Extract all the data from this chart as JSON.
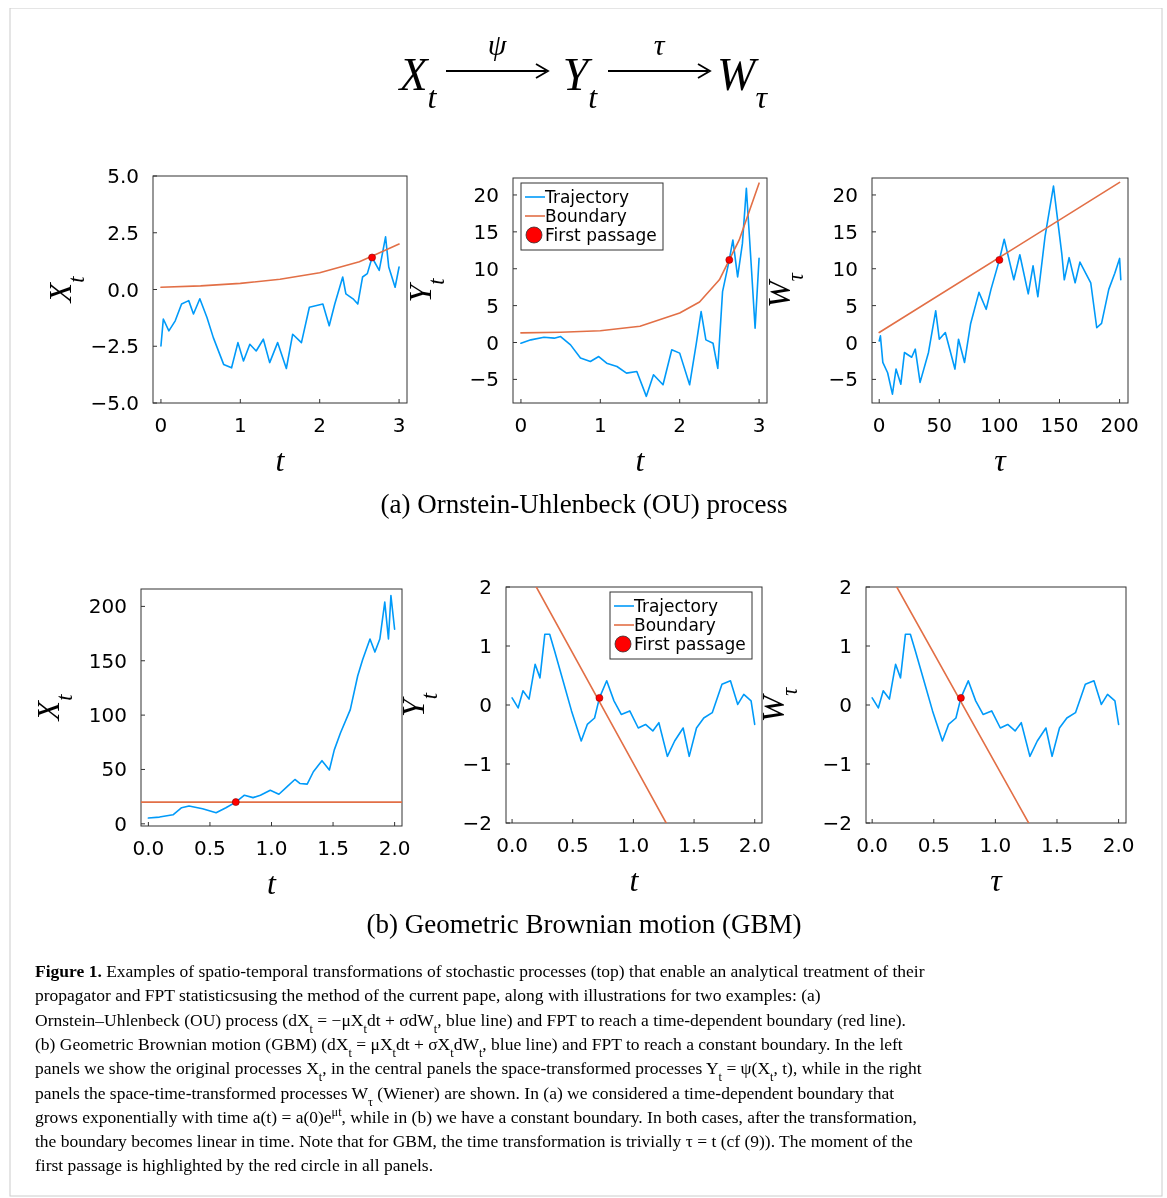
{
  "chart_data": [
    {
      "type": "other",
      "annotations": [
        "X$_{t}$",
        "ψ",
        "Y$_{t}$",
        "τ",
        "W$_{τ}$"
      ]
    },
    {
      "type": "line",
      "xlabel": "t",
      "ylabel": "X$_{t}$",
      "xlim": [
        -0.1,
        3.1
      ],
      "ylim": [
        -5,
        5
      ],
      "xticks": [
        0,
        1,
        2,
        3
      ],
      "yticks": [
        {
          "value": -5,
          "label": "−5.0"
        },
        {
          "value": -2.5,
          "label": "−2.5"
        },
        {
          "value": 0,
          "label": "0.0"
        },
        2.5,
        {
          "value": 5,
          "label": "5.0"
        }
      ],
      "series": [
        {
          "color": "#009af9",
          "x": [
            0,
            0.03,
            0.1,
            0.18,
            0.26,
            0.35,
            0.41,
            0.49,
            0.58,
            0.66,
            0.79,
            0.89,
            0.97,
            1.04,
            1.12,
            1.2,
            1.29,
            1.37,
            1.47,
            1.58,
            1.66,
            1.77,
            1.87,
            2.04,
            2.12,
            2.19,
            2.29,
            2.33,
            2.42,
            2.48,
            2.54,
            2.6,
            2.66,
            2.75,
            2.83,
            2.87,
            2.95,
            3.0
          ],
          "values": [
            -2.49,
            -1.3,
            -1.82,
            -1.38,
            -0.64,
            -0.49,
            -1.08,
            -0.41,
            -1.23,
            -2.12,
            -3.3,
            -3.45,
            -2.34,
            -3.15,
            -2.41,
            -2.71,
            -2.19,
            -3.22,
            -2.34,
            -3.48,
            -1.97,
            -2.34,
            -0.78,
            -0.64,
            -1.6,
            -0.64,
            0.55,
            -0.19,
            -0.41,
            -0.64,
            0.55,
            0.7,
            1.41,
            0.84,
            2.32,
            0.99,
            0.1,
            0.99
          ]
        },
        {
          "color": "#e26f46",
          "x": [
            0,
            0.5,
            1,
            1.5,
            2,
            2.5,
            3
          ],
          "values": [
            0.1,
            0.16,
            0.27,
            0.45,
            0.74,
            1.22,
            2.0
          ]
        },
        {
          "type": "scatter",
          "marker": "circle",
          "color": "#ff0000",
          "x": [
            2.66
          ],
          "values": [
            1.41
          ]
        }
      ]
    },
    {
      "type": "line",
      "xlabel": "t",
      "ylabel": "Y$_{t}$",
      "xlim": [
        -0.1,
        3.1
      ],
      "ylim": [
        -8.2,
        22.3
      ],
      "xticks": [
        0,
        1,
        2,
        3
      ],
      "yticks": [
        {
          "value": -5,
          "label": "−5"
        },
        0,
        5,
        10,
        15,
        20
      ],
      "legend": "top left",
      "annotations": [
        "(a) Ornstein-Uhlenbeck (OU) process"
      ],
      "series": [
        {
          "name": "Trajectory",
          "color": "#009af9",
          "x": [
            0,
            0.125,
            0.29,
            0.42,
            0.5,
            0.625,
            0.75,
            0.875,
            0.98,
            1.08,
            1.21,
            1.33,
            1.46,
            1.58,
            1.67,
            1.79,
            1.9,
            2.0,
            2.125,
            2.21,
            2.27,
            2.33,
            2.42,
            2.48,
            2.54,
            2.625,
            2.67,
            2.73,
            2.79,
            2.84,
            2.9,
            2.95,
            3.0
          ],
          "values": [
            -0.1,
            0.36,
            0.72,
            0.59,
            0.81,
            -0.32,
            -2.1,
            -2.57,
            -1.9,
            -2.8,
            -3.25,
            -4.15,
            -3.93,
            -7.3,
            -4.38,
            -5.73,
            -0.99,
            -1.44,
            -5.73,
            -0.1,
            4.2,
            0.36,
            -0.1,
            -3.5,
            6.9,
            11.2,
            13.9,
            8.9,
            13.4,
            20.9,
            10.7,
            1.94,
            11.4
          ]
        },
        {
          "name": "Boundary",
          "color": "#e26f46",
          "x": [
            0,
            0.5,
            1,
            1.5,
            2,
            2.25,
            2.5,
            2.625,
            2.75,
            3
          ],
          "values": [
            1.3,
            1.4,
            1.6,
            2.2,
            4.0,
            5.5,
            8.5,
            11.2,
            13.9,
            21.6
          ]
        },
        {
          "name": "First passage",
          "type": "scatter",
          "marker": "circle",
          "color": "#ff0000",
          "x": [
            2.625
          ],
          "values": [
            11.2
          ]
        }
      ]
    },
    {
      "type": "line",
      "xlabel": "τ",
      "ylabel": "W$_{τ}$",
      "xlim": [
        -6,
        207
      ],
      "ylim": [
        -8.2,
        22.3
      ],
      "xticks": [
        0,
        50,
        100,
        150,
        200
      ],
      "yticks": [
        {
          "value": -5,
          "label": "−5"
        },
        0,
        5,
        10,
        15,
        20
      ],
      "series": [
        {
          "color": "#009af9",
          "x": [
            0,
            1,
            3,
            7,
            11,
            14,
            18,
            21,
            27,
            30,
            34,
            41,
            47,
            50,
            55,
            63,
            66,
            71,
            76,
            83,
            89,
            93,
            100,
            104,
            112,
            117,
            124,
            128,
            132,
            138,
            145,
            152,
            154,
            158,
            163,
            167,
            176,
            181,
            185,
            191,
            196,
            200,
            201
          ],
          "values": [
            0.2,
            0.9,
            -2.7,
            -4.1,
            -7,
            -3.6,
            -5.65,
            -1.35,
            -2.0,
            -0.9,
            -5.4,
            -1.35,
            4.3,
            0.45,
            1.36,
            -3.6,
            0.45,
            -2.7,
            2.5,
            6.8,
            4.5,
            7.2,
            11.2,
            14,
            8.5,
            11.9,
            6.6,
            10.4,
            6.2,
            14.4,
            21.2,
            11.9,
            8.5,
            11.5,
            8.1,
            10.9,
            8.1,
            2,
            2.6,
            7.2,
            9.4,
            11.4,
            8.5
          ]
        },
        {
          "color": "#e26f46",
          "x": [
            0,
            200
          ],
          "values": [
            1.36,
            21.7
          ]
        },
        {
          "type": "scatter",
          "marker": "circle",
          "color": "#ff0000",
          "x": [
            100
          ],
          "values": [
            11.2
          ]
        }
      ]
    },
    {
      "type": "line",
      "xlabel": "t",
      "ylabel": "X$_{t}$",
      "xlim": [
        -0.06,
        2.06
      ],
      "ylim": [
        -2,
        216
      ],
      "xticks": [
        {
          "value": 0,
          "label": "0.0"
        },
        0.5,
        {
          "value": 1,
          "label": "1.0"
        },
        1.5,
        {
          "value": 2,
          "label": "2.0"
        }
      ],
      "yticks": [
        0,
        50,
        100,
        150,
        200
      ],
      "series": [
        {
          "color": "#009af9",
          "x": [
            0,
            0.09,
            0.2,
            0.27,
            0.33,
            0.44,
            0.55,
            0.63,
            0.71,
            0.78,
            0.85,
            0.91,
            0.99,
            1.06,
            1.125,
            1.19,
            1.23,
            1.29,
            1.34,
            1.41,
            1.47,
            1.51,
            1.56,
            1.64,
            1.7,
            1.74,
            1.8,
            1.84,
            1.88,
            1.92,
            1.95,
            1.97,
            2.0
          ],
          "values": [
            5.3,
            6.2,
            8.3,
            14.8,
            16.4,
            13.9,
            10.2,
            14.8,
            20,
            26.3,
            24.1,
            26.3,
            30.9,
            27.2,
            34,
            40.8,
            37.1,
            36.5,
            47.9,
            58.1,
            49.5,
            68,
            83.5,
            105,
            136,
            151,
            170,
            158,
            170,
            204,
            170,
            210,
            179
          ]
        },
        {
          "color": "#e26f46",
          "x": [
            -0.06,
            2.06
          ],
          "values": [
            20,
            20
          ]
        },
        {
          "type": "scatter",
          "marker": "circle",
          "color": "#ff0000",
          "x": [
            0.71
          ],
          "values": [
            20
          ]
        }
      ]
    },
    {
      "type": "line",
      "xlabel": "t",
      "ylabel": "Y$_{t}$",
      "xlim": [
        -0.05,
        2.06
      ],
      "ylim": [
        -2,
        2
      ],
      "xticks": [
        {
          "value": 0,
          "label": "0.0"
        },
        0.5,
        {
          "value": 1,
          "label": "1.0"
        },
        1.5,
        {
          "value": 2,
          "label": "2.0"
        }
      ],
      "yticks": [
        {
          "value": -2,
          "label": "−2"
        },
        {
          "value": -1,
          "label": "−1"
        },
        0,
        1,
        2
      ],
      "legend": "top right",
      "annotations": [
        "(b) Geometric Brownian motion (GBM)"
      ],
      "series": [
        {
          "name": "Trajectory",
          "color": "#009af9",
          "x": [
            0,
            0.05,
            0.09,
            0.14,
            0.19,
            0.23,
            0.27,
            0.31,
            0.35,
            0.42,
            0.49,
            0.57,
            0.62,
            0.68,
            0.72,
            0.78,
            0.84,
            0.9,
            0.97,
            1.04,
            1.1,
            1.16,
            1.21,
            1.28,
            1.34,
            1.41,
            1.46,
            1.52,
            1.58,
            1.65,
            1.73,
            1.8,
            1.86,
            1.91,
            1.97,
            2.0
          ],
          "values": [
            0.12,
            -0.05,
            0.24,
            0.1,
            0.69,
            0.46,
            1.2,
            1.2,
            0.92,
            0.41,
            -0.1,
            -0.61,
            -0.33,
            -0.22,
            0.12,
            0.41,
            0.07,
            -0.16,
            -0.1,
            -0.39,
            -0.33,
            -0.44,
            -0.3,
            -0.87,
            -0.61,
            -0.39,
            -0.87,
            -0.39,
            -0.22,
            -0.13,
            0.35,
            0.41,
            0.01,
            0.18,
            0.07,
            -0.33
          ]
        },
        {
          "name": "Boundary",
          "color": "#e26f46",
          "x": [
            0.2,
            1.27
          ],
          "values": [
            2,
            -2
          ]
        },
        {
          "name": "First passage",
          "type": "scatter",
          "marker": "circle",
          "color": "#ff0000",
          "x": [
            0.72
          ],
          "values": [
            0.12
          ]
        }
      ]
    },
    {
      "type": "line",
      "xlabel": "τ",
      "ylabel": "W$_{τ}$",
      "xlim": [
        -0.05,
        2.06
      ],
      "ylim": [
        -2,
        2
      ],
      "xticks": [
        {
          "value": 0,
          "label": "0.0"
        },
        0.5,
        {
          "value": 1,
          "label": "1.0"
        },
        1.5,
        {
          "value": 2,
          "label": "2.0"
        }
      ],
      "yticks": [
        {
          "value": -2,
          "label": "−2"
        },
        {
          "value": -1,
          "label": "−1"
        },
        0,
        1,
        2
      ],
      "series": [
        {
          "color": "#009af9",
          "x": [
            0,
            0.05,
            0.09,
            0.14,
            0.19,
            0.23,
            0.27,
            0.31,
            0.35,
            0.42,
            0.49,
            0.57,
            0.62,
            0.68,
            0.72,
            0.78,
            0.84,
            0.9,
            0.97,
            1.04,
            1.1,
            1.16,
            1.21,
            1.28,
            1.34,
            1.41,
            1.46,
            1.52,
            1.58,
            1.65,
            1.73,
            1.8,
            1.86,
            1.91,
            1.97,
            2.0
          ],
          "values": [
            0.12,
            -0.05,
            0.24,
            0.1,
            0.69,
            0.46,
            1.2,
            1.2,
            0.92,
            0.41,
            -0.1,
            -0.61,
            -0.33,
            -0.22,
            0.12,
            0.41,
            0.07,
            -0.16,
            -0.1,
            -0.39,
            -0.33,
            -0.44,
            -0.3,
            -0.87,
            -0.61,
            -0.39,
            -0.87,
            -0.39,
            -0.22,
            -0.13,
            0.35,
            0.41,
            0.01,
            0.18,
            0.07,
            -0.33
          ]
        },
        {
          "color": "#e26f46",
          "x": [
            0.2,
            1.27
          ],
          "values": [
            2,
            -2
          ]
        },
        {
          "type": "scatter",
          "marker": "circle",
          "color": "#ff0000",
          "x": [
            0.72
          ],
          "values": [
            0.12
          ]
        }
      ]
    },
    {
      "type": "other",
      "annotations": [
        "Figure 1. Examples of spatio-temporal transformations of stochastic processes (top) that enable an analytical treatment of their",
        "propagator and FPT statisticsusing the method of the current pape, along with illustrations for two examples: (a)",
        "Ornstein–Uhlenbeck (OU) process (dX$_{t}$ = −μX$_{t}$dt + σdW$_{t}$, blue line) and FPT to reach a time-dependent boundary (red line).",
        "(b) Geometric Brownian motion (GBM) (dX$_{t}$ = μX$_{t}$dt + σX$_{t}$dW$_{t}$, blue line) and FPT to reach a constant boundary. In the left",
        "panels we show the original processes X$_{t}$, in the central panels the space-transformed processes Y$_{t}$ = ψ(X$_{t}$, t), while in the right",
        "panels the space-time-transformed processes W$_{τ}$ (Wiener) are shown. In (a) we considered a time-dependent boundary that",
        "grows exponentially with time a(t) = a(0)e$^{μt}$, while in (b) we have a constant boundary. In both cases, after the transformation,",
        "the boundary becomes linear in time. Note that for GBM, the time transformation is trivially τ = t (cf (9)). The moment of the",
        "first passage is highlighted by the red circle in all panels."
      ]
    }
  ]
}
